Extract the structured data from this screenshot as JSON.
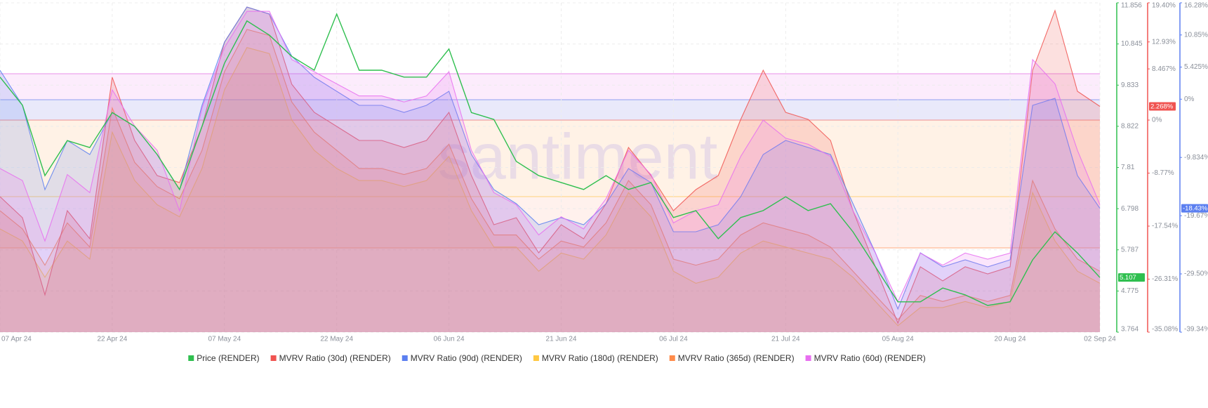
{
  "chart_data": {
    "type": "line",
    "watermark": "santiment",
    "categories": [
      "07 Apr 24",
      null,
      null,
      null,
      null,
      "22 Apr 24",
      null,
      null,
      null,
      null,
      "07 May 24",
      null,
      null,
      null,
      null,
      "22 May 24",
      null,
      null,
      null,
      null,
      "06 Jun 24",
      null,
      null,
      null,
      null,
      "21 Jun 24",
      null,
      null,
      null,
      null,
      "06 Jul 24",
      null,
      null,
      null,
      null,
      "21 Jul 24",
      null,
      null,
      null,
      null,
      "05 Aug 24",
      null,
      null,
      null,
      null,
      "20 Aug 24",
      null,
      null,
      null,
      "02 Sep 24"
    ],
    "ylim": [
      3.764,
      11.856
    ],
    "yticks": [
      3.764,
      4.775,
      5.787,
      6.798,
      7.81,
      8.822,
      9.833,
      10.845,
      11.856
    ],
    "y2lim": [
      -35.08,
      19.4
    ],
    "y2ticks": [
      {
        "value": -35.08,
        "label": "-35.08%"
      },
      {
        "value": -26.31,
        "label": "-26.31%"
      },
      {
        "value": -17.54,
        "label": "-17.54%"
      },
      {
        "value": -8.77,
        "label": "-8.77%"
      },
      {
        "value": 0,
        "label": "0%"
      },
      {
        "value": 8.467,
        "label": "8.467%"
      },
      {
        "value": 12.93,
        "label": "12.93%"
      },
      {
        "value": 19.4,
        "label": "19.40%"
      }
    ],
    "y3lim": [
      -39.34,
      16.28
    ],
    "y3ticks": [
      {
        "value": -39.34,
        "label": "-39.34%"
      },
      {
        "value": -29.5,
        "label": "-29.50%"
      },
      {
        "value": -19.67,
        "label": "-19.67%"
      },
      {
        "value": -9.834,
        "label": "-9.834%"
      },
      {
        "value": 0,
        "label": "0%"
      },
      {
        "value": 5.425,
        "label": "5.425%"
      },
      {
        "value": 10.85,
        "label": "10.85%"
      },
      {
        "value": 16.28,
        "label": "16.28%"
      }
    ],
    "grid": true,
    "legend": "bottom",
    "series": [
      {
        "name": "Price (RENDER)",
        "color": "#2fbf4f",
        "axis": "y",
        "current_label": "5.107",
        "values": [
          10.03,
          9.34,
          7.61,
          8.47,
          8.3,
          9.16,
          8.82,
          8.13,
          7.27,
          8.82,
          10.37,
          11.41,
          11.06,
          10.54,
          10.2,
          11.58,
          10.2,
          10.2,
          10.03,
          10.03,
          10.72,
          9.16,
          8.99,
          7.96,
          7.61,
          7.44,
          7.27,
          7.61,
          7.27,
          7.44,
          6.58,
          6.75,
          6.06,
          6.58,
          6.75,
          7.09,
          6.75,
          6.92,
          6.23,
          5.37,
          4.51,
          4.51,
          4.85,
          4.68,
          4.42,
          4.51,
          5.54,
          6.23,
          5.71,
          5.107
        ]
      },
      {
        "name": "MVRV Ratio (30d) (RENDER)",
        "color": "#f05350",
        "axis": "y2",
        "current_label": "2.268%",
        "values": [
          -12.66,
          -16.15,
          -28.9,
          -14.98,
          -19.63,
          7.09,
          -3.37,
          -9.18,
          -10.34,
          -1.04,
          12.89,
          18.7,
          17.54,
          5.92,
          1.28,
          -1.04,
          -3.37,
          -3.37,
          -4.53,
          -3.37,
          1.28,
          -9.18,
          -17.31,
          -16.15,
          -21.95,
          -17.31,
          -19.63,
          -13.82,
          -4.53,
          -9.18,
          -14.98,
          -11.5,
          -9.18,
          0.12,
          8.25,
          1.28,
          0.12,
          -3.37,
          -14.98,
          -24.27,
          -33.57,
          -24.27,
          -26.6,
          -24.27,
          -25.44,
          -24.27,
          8.25,
          18.12,
          4.76,
          2.268
        ]
      },
      {
        "name": "MVRV Ratio (90d) (RENDER)",
        "color": "#5b7ff0",
        "axis": "y3",
        "current_label": "-18.43%",
        "values": [
          4.89,
          -1.04,
          -15.27,
          -6.96,
          -9.34,
          -2.22,
          -4.59,
          -9.34,
          -15.27,
          -1.04,
          9.64,
          15.57,
          14.38,
          7.27,
          3.71,
          1.34,
          -1.04,
          -1.04,
          -2.22,
          -1.04,
          1.34,
          -9.34,
          -15.27,
          -17.64,
          -21.2,
          -20.01,
          -21.2,
          -17.64,
          -11.71,
          -14.08,
          -22.38,
          -22.38,
          -21.2,
          -16.45,
          -9.34,
          -6.96,
          -8.15,
          -9.34,
          -17.64,
          -25.94,
          -35.43,
          -25.94,
          -28.31,
          -27.13,
          -28.31,
          -27.13,
          -1.04,
          0.15,
          -12.89,
          -18.43
        ]
      },
      {
        "name": "MVRV Ratio (180d) (RENDER)",
        "color": "#ffc842",
        "axis": "y2",
        "values": [
          -18,
          -20,
          -26,
          -20,
          -23,
          -2,
          -10,
          -14,
          -16,
          -8,
          5,
          12,
          11,
          0,
          -5,
          -8,
          -10,
          -10,
          -11,
          -10,
          -6,
          -15,
          -21,
          -21,
          -25,
          -22,
          -23,
          -19,
          -12,
          -16,
          -25,
          -27,
          -26,
          -22,
          -20,
          -21,
          -22,
          -23,
          -26,
          -30,
          -34,
          -31,
          -31,
          -30,
          -31,
          -30,
          -12,
          -20,
          -25,
          -27
        ]
      },
      {
        "name": "MVRV Ratio (365d) (RENDER)",
        "color": "#ff8b4a",
        "axis": "y2",
        "values": [
          -15,
          -18,
          -24,
          -17,
          -21,
          2,
          -7,
          -11,
          -13,
          -5,
          8,
          15,
          14,
          3,
          -2,
          -5,
          -8,
          -8,
          -9,
          -8,
          -4,
          -13,
          -19,
          -19,
          -23,
          -20,
          -21,
          -17,
          -10,
          -14,
          -23,
          -24,
          -23,
          -19,
          -17,
          -18,
          -19,
          -21,
          -25,
          -29,
          -33,
          -29,
          -30,
          -29,
          -30,
          -29,
          -10,
          -18,
          -23,
          -25
        ]
      },
      {
        "name": "MVRV Ratio (60d) (RENDER)",
        "color": "#e86ff0",
        "axis": "y2",
        "values": [
          -8,
          -10,
          -20,
          -9,
          -12,
          5,
          -1,
          -5,
          -15,
          2,
          12,
          18,
          18,
          10,
          8,
          6,
          4,
          4,
          3,
          4,
          8,
          -5,
          -12,
          -14,
          -19,
          -16,
          -18,
          -13,
          -5,
          -9,
          -17,
          -15,
          -14,
          -6,
          0,
          -3,
          -4,
          -6,
          -15,
          -22,
          -30,
          -22,
          -24,
          -22,
          -23,
          -22,
          10,
          6,
          -5,
          -14
        ]
      }
    ]
  }
}
